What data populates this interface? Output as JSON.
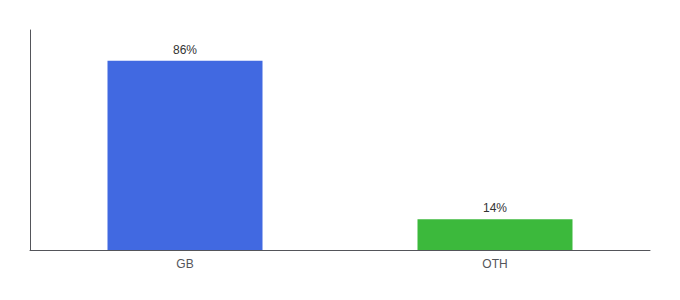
{
  "chart_data": {
    "type": "bar",
    "categories": [
      "GB",
      "OTH"
    ],
    "values": [
      86,
      14
    ],
    "value_labels": [
      "86%",
      "14%"
    ],
    "colors": [
      "#4169e1",
      "#3cb93c"
    ],
    "ylim": [
      0,
      100
    ],
    "data_labels": true,
    "tick_labels": "x",
    "grid": false
  }
}
